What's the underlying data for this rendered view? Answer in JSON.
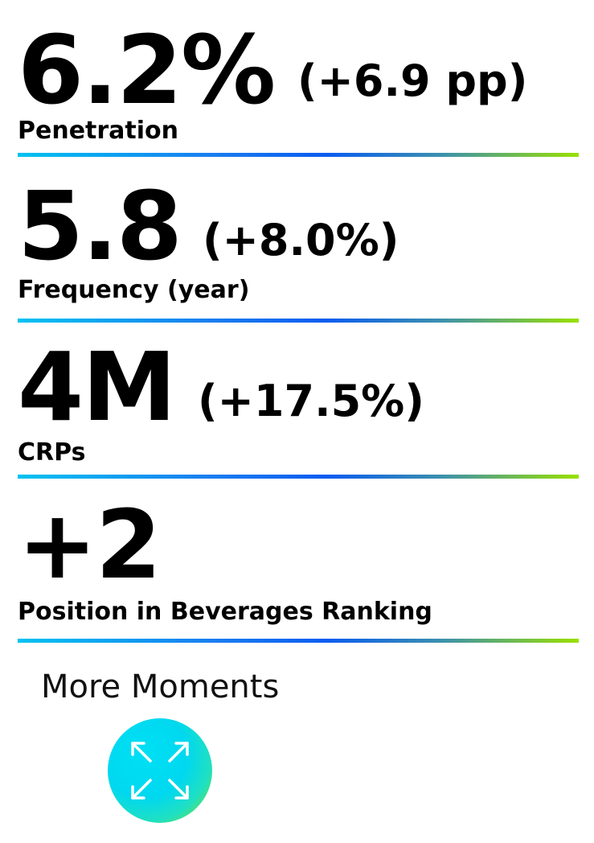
{
  "metrics": [
    {
      "value": "6.2%",
      "change": "(+6.9 pp)",
      "label": "Penetration"
    },
    {
      "value": "5.8",
      "change": "(+8.0%)",
      "label": "Frequency (year)"
    },
    {
      "value": "4M",
      "change": "(+17.5%)",
      "label": "CRPs"
    },
    {
      "value": "+2",
      "change": "",
      "label": "Position in Beverages Ranking"
    }
  ],
  "more": {
    "label": "More Moments",
    "icon": "expand-arrows-icon"
  },
  "colors": {
    "divider_start": "#00c2f0",
    "divider_mid": "#0a5cf0",
    "divider_end": "#9ae000",
    "button_main": "#00d8f0",
    "button_accent": "#9ae000"
  }
}
